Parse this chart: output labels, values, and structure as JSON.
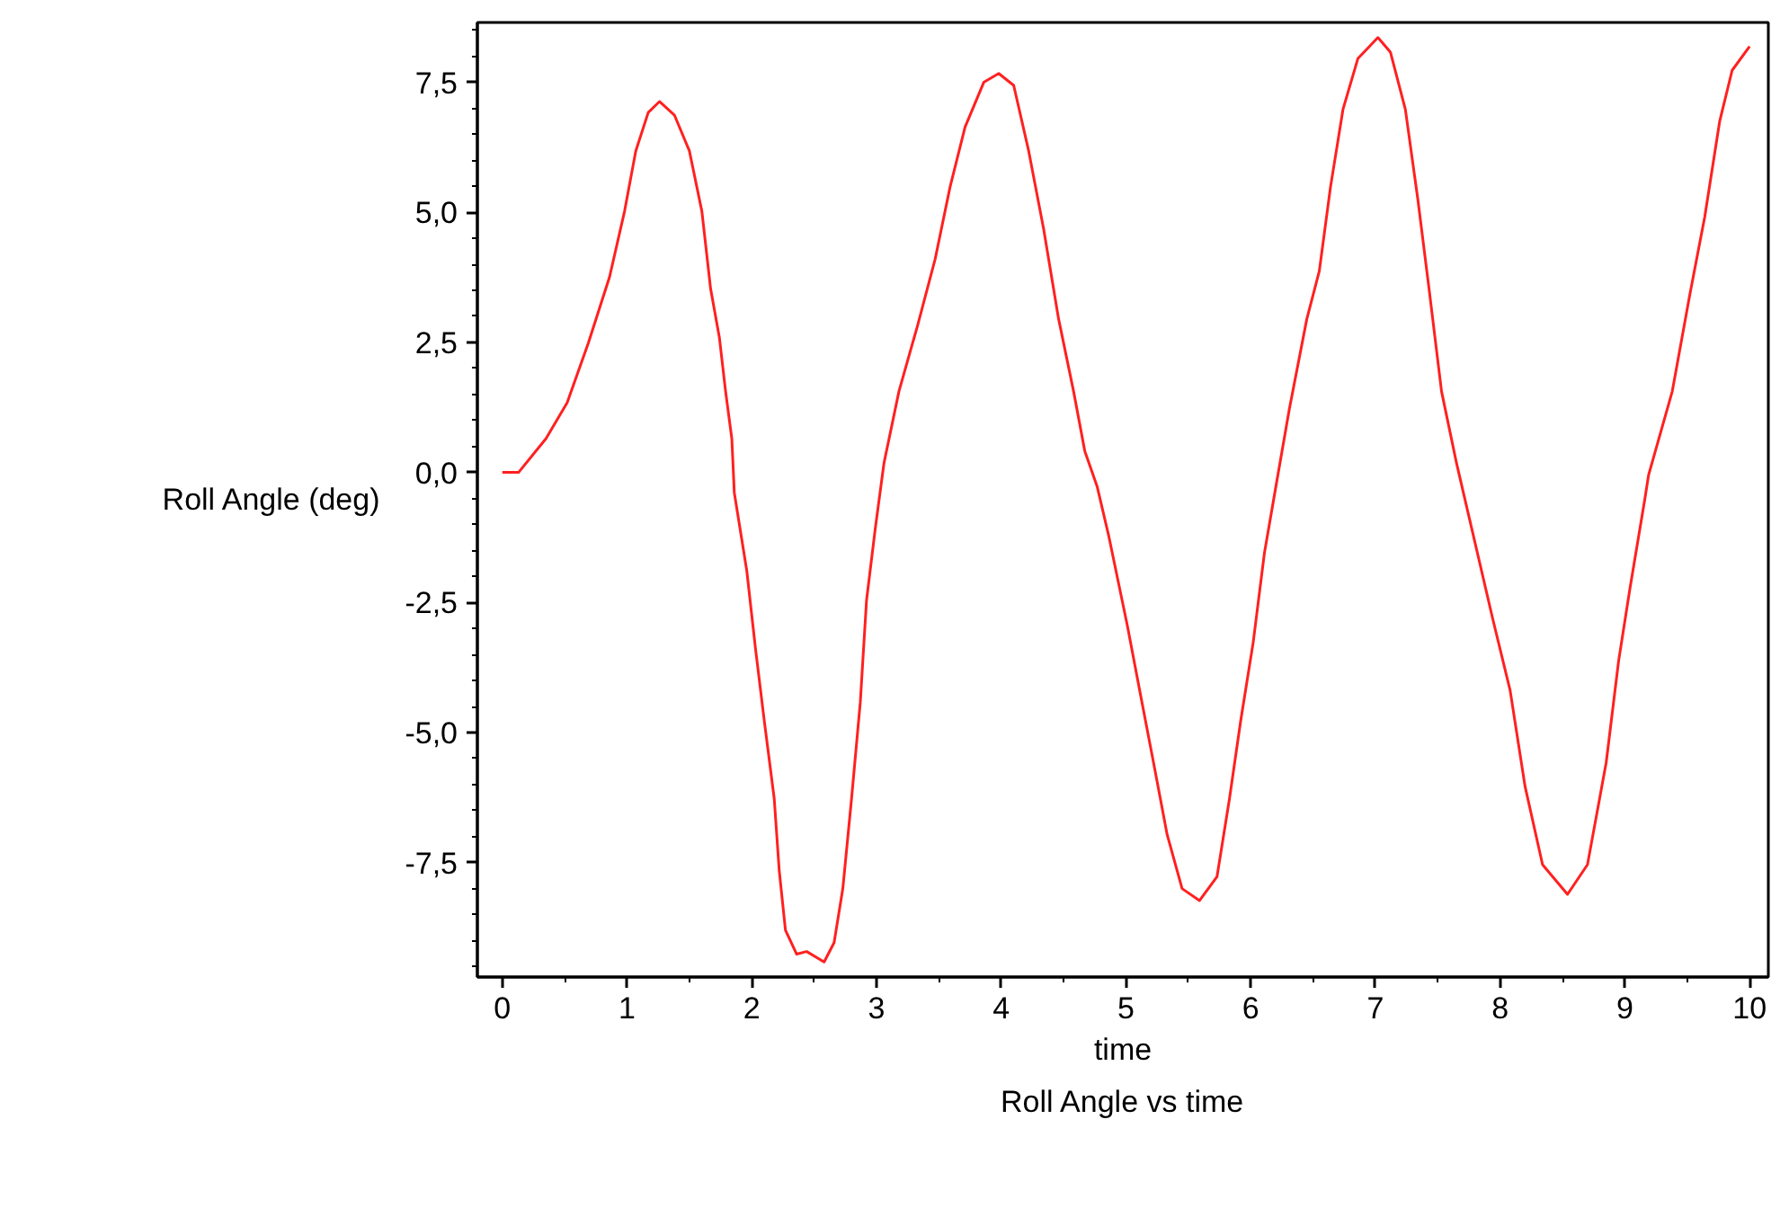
{
  "chart_data": {
    "type": "line",
    "title": "Roll Angle vs time",
    "xlabel": "time",
    "ylabel": "Roll Angle (deg)",
    "x": [
      0,
      0.13,
      0.35,
      0.52,
      0.69,
      0.86,
      0.98,
      1.07,
      1.17,
      1.26,
      1.38,
      1.5,
      1.6,
      1.67,
      1.74,
      1.79,
      1.84,
      1.86,
      1.96,
      2.03,
      2.1,
      2.18,
      2.22,
      2.27,
      2.36,
      2.44,
      2.58,
      2.66,
      2.73,
      2.8,
      2.87,
      2.92,
      2.99,
      3.06,
      3.18,
      3.33,
      3.47,
      3.59,
      3.71,
      3.86,
      3.98,
      4.1,
      4.22,
      4.34,
      4.46,
      4.58,
      4.67,
      4.77,
      4.86,
      5.01,
      5.11,
      5.23,
      5.33,
      5.45,
      5.59,
      5.73,
      5.83,
      5.92,
      6.02,
      6.11,
      6.21,
      6.31,
      6.45,
      6.55,
      6.64,
      6.74,
      6.86,
      7.02,
      7.12,
      7.24,
      7.34,
      7.43,
      7.53,
      7.65,
      7.75,
      7.94,
      8.08,
      8.2,
      8.34,
      8.54,
      8.7,
      8.85,
      8.95,
      9.04,
      9.16,
      9.19,
      9.38,
      9.52,
      9.64,
      9.76,
      9.86,
      10.0
    ],
    "series": [
      {
        "color": "#ff2020",
        "values": [
          0,
          0,
          0.65,
          1.34,
          2.49,
          3.76,
          5.02,
          6.18,
          6.92,
          7.13,
          6.87,
          6.18,
          5.02,
          3.53,
          2.6,
          1.56,
          0.65,
          -0.39,
          -1.89,
          -3.39,
          -4.77,
          -6.27,
          -7.65,
          -8.8,
          -9.26,
          -9.21,
          -9.41,
          -9.04,
          -8.0,
          -6.27,
          -4.42,
          -2.46,
          -1.08,
          0.18,
          1.56,
          2.83,
          4.1,
          5.49,
          6.64,
          7.5,
          7.67,
          7.44,
          6.18,
          4.68,
          2.95,
          1.56,
          0.41,
          -0.28,
          -1.2,
          -2.93,
          -4.19,
          -5.69,
          -6.96,
          -8.0,
          -8.23,
          -7.77,
          -6.27,
          -4.77,
          -3.27,
          -1.55,
          -0.16,
          1.22,
          2.95,
          3.87,
          5.49,
          6.98,
          7.96,
          8.36,
          8.08,
          6.98,
          5.25,
          3.53,
          1.56,
          0.18,
          -0.85,
          -2.81,
          -4.19,
          -6.04,
          -7.54,
          -8.11,
          -7.54,
          -5.58,
          -3.62,
          -2.24,
          -0.51,
          -0.05,
          1.56,
          3.41,
          4.91,
          6.75,
          7.73,
          8.19
        ]
      }
    ],
    "xlim": [
      -0.2,
      10.15
    ],
    "ylim": [
      -9.7,
      8.65
    ],
    "xticks": [
      0,
      1,
      2,
      3,
      4,
      5,
      6,
      7,
      8,
      9,
      10
    ],
    "yticks": [
      {
        "value": -7.5,
        "label": "-7,5"
      },
      {
        "value": -5,
        "label": "-5,0"
      },
      {
        "value": -2.5,
        "label": "-2,5"
      },
      {
        "value": 0,
        "label": "0,0"
      },
      {
        "value": 2.5,
        "label": "2,5"
      },
      {
        "value": 5,
        "label": "5,0"
      },
      {
        "value": 7.5,
        "label": "7,5"
      }
    ],
    "grid": false,
    "marker": "none",
    "line_style": "solid"
  }
}
